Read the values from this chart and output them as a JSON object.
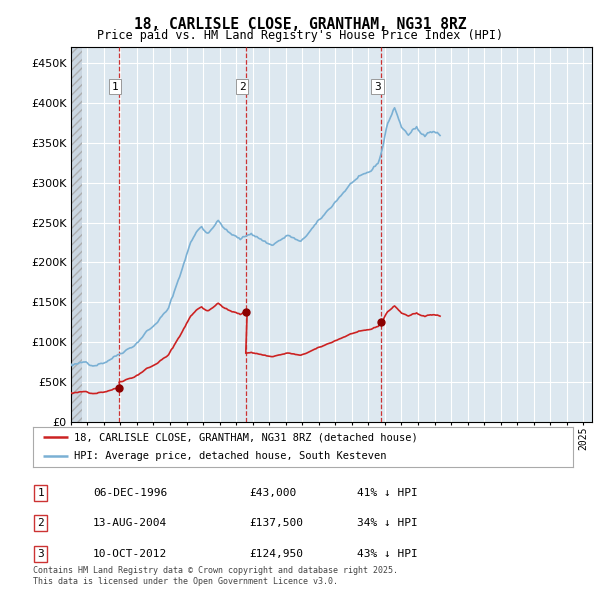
{
  "title": "18, CARLISLE CLOSE, GRANTHAM, NG31 8RZ",
  "subtitle": "Price paid vs. HM Land Registry's House Price Index (HPI)",
  "xlim": [
    1994.0,
    2025.5
  ],
  "ylim": [
    0,
    470000
  ],
  "yticks": [
    0,
    50000,
    100000,
    150000,
    200000,
    250000,
    300000,
    350000,
    400000,
    450000
  ],
  "ytick_labels": [
    "£0",
    "£50K",
    "£100K",
    "£150K",
    "£200K",
    "£250K",
    "£300K",
    "£350K",
    "£400K",
    "£450K"
  ],
  "background_color": "#ffffff",
  "plot_bg_color": "#dde8f0",
  "grid_color": "#ffffff",
  "hpi_color": "#7ab0d4",
  "price_color": "#cc2222",
  "sale_marker_color": "#8b0000",
  "transaction_dashed_color": "#cc3333",
  "legend_label_price": "18, CARLISLE CLOSE, GRANTHAM, NG31 8RZ (detached house)",
  "legend_label_hpi": "HPI: Average price, detached house, South Kesteven",
  "transactions": [
    {
      "num": 1,
      "date": "06-DEC-1996",
      "year": 1996.917,
      "price": 43000,
      "label": "£43,000",
      "pct": "41% ↓ HPI"
    },
    {
      "num": 2,
      "date": "13-AUG-2004",
      "year": 2004.625,
      "price": 137500,
      "label": "£137,500",
      "pct": "34% ↓ HPI"
    },
    {
      "num": 3,
      "date": "10-OCT-2012",
      "year": 2012.792,
      "price": 124950,
      "label": "£124,950",
      "pct": "43% ↓ HPI"
    }
  ],
  "footer": "Contains HM Land Registry data © Crown copyright and database right 2025.\nThis data is licensed under the Open Government Licence v3.0.",
  "hpi_base_values": [
    72000,
    70000,
    71000,
    71500,
    72000,
    72500,
    73000,
    73500,
    74000,
    74500,
    75000,
    75500,
    74000,
    73000,
    72500,
    72000,
    71500,
    71000,
    71500,
    72000,
    72500,
    73000,
    73500,
    74000,
    74500,
    75000,
    76000,
    77000,
    78000,
    79000,
    80000,
    81000,
    82000,
    83000,
    84000,
    85000,
    86000,
    87000,
    88000,
    89000,
    90000,
    91000,
    92000,
    93000,
    94000,
    95000,
    96000,
    97000,
    99000,
    101000,
    103000,
    105000,
    107000,
    109000,
    111000,
    113000,
    115000,
    116000,
    117000,
    118000,
    120000,
    122000,
    124000,
    126000,
    128000,
    130000,
    132000,
    134000,
    136000,
    138000,
    140000,
    142000,
    148000,
    153000,
    158000,
    163000,
    168000,
    173000,
    178000,
    183000,
    188000,
    193000,
    198000,
    203000,
    210000,
    215000,
    220000,
    225000,
    228000,
    231000,
    234000,
    237000,
    240000,
    242000,
    244000,
    246000,
    242000,
    240000,
    238000,
    237000,
    238000,
    240000,
    242000,
    244000,
    246000,
    248000,
    250000,
    252000,
    250000,
    248000,
    246000,
    244000,
    242000,
    240000,
    238000,
    237000,
    236000,
    235000,
    234000,
    233000,
    232000,
    231000,
    230000,
    229000,
    230000,
    231000,
    232000,
    233000,
    234000,
    235000,
    236000,
    237000,
    235000,
    234000,
    233000,
    232000,
    231000,
    230000,
    229000,
    228000,
    227000,
    226000,
    225000,
    224000,
    223000,
    222000,
    222000,
    223000,
    224000,
    225000,
    226000,
    227000,
    228000,
    229000,
    230000,
    231000,
    232000,
    233000,
    234000,
    233000,
    232000,
    231000,
    230000,
    229000,
    228000,
    227000,
    226000,
    225000,
    228000,
    230000,
    232000,
    234000,
    236000,
    238000,
    240000,
    242000,
    244000,
    246000,
    248000,
    250000,
    252000,
    254000,
    256000,
    258000,
    260000,
    262000,
    264000,
    266000,
    268000,
    270000,
    272000,
    274000,
    276000,
    278000,
    280000,
    282000,
    284000,
    286000,
    288000,
    290000,
    292000,
    294000,
    296000,
    298000,
    300000,
    302000,
    303000,
    304000,
    305000,
    306000,
    307000,
    308000,
    309000,
    310000,
    311000,
    312000,
    313000,
    314000,
    315000,
    317000,
    319000,
    321000,
    323000,
    325000,
    330000,
    335000,
    342000,
    350000,
    360000,
    368000,
    375000,
    378000,
    382000,
    386000,
    390000,
    393000,
    390000,
    385000,
    380000,
    375000,
    370000,
    368000,
    366000,
    364000,
    362000,
    360000,
    362000,
    364000,
    366000,
    367000,
    368000,
    370000,
    365000,
    363000,
    362000,
    361000,
    360000,
    358000,
    360000,
    362000,
    363000,
    364000,
    365000,
    366000,
    365000,
    364000,
    363000,
    362000,
    360000
  ]
}
